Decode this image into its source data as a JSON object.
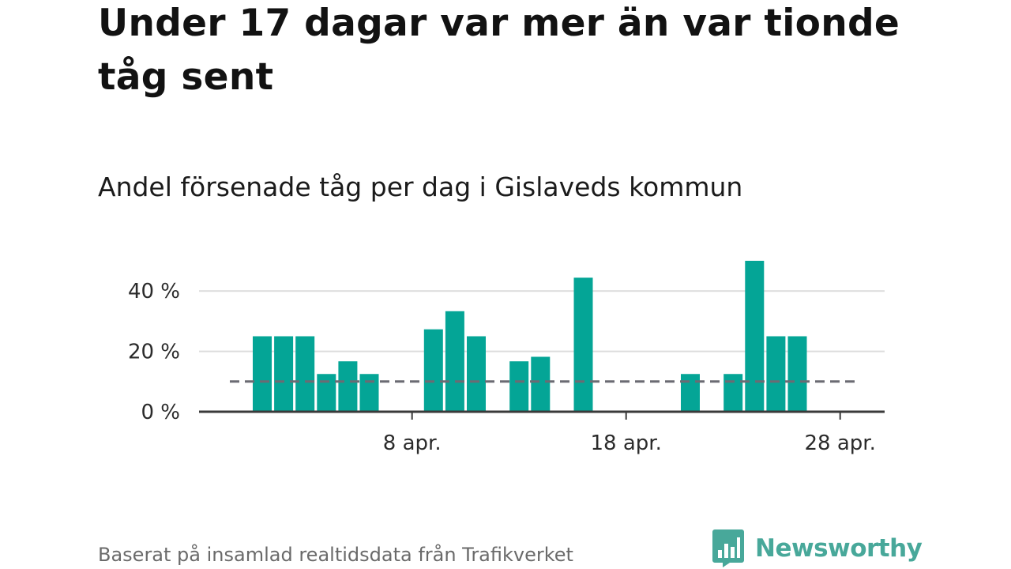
{
  "title": "Under 17 dagar var mer än var tionde tåg sent",
  "subtitle": "Andel försenade tåg per dag i Gislaveds kommun",
  "source": "Baserat på insamlad realtidsdata från Trafikverket",
  "brand": {
    "name": "Newsworthy",
    "icon": "newsworthy-logo-icon",
    "color": "#48a89a"
  },
  "chart_data": {
    "type": "bar",
    "x_unit": "day",
    "x": [
      "1 apr.",
      "2 apr.",
      "3 apr.",
      "4 apr.",
      "5 apr.",
      "6 apr.",
      "7 apr.",
      "8 apr.",
      "9 apr.",
      "10 apr.",
      "11 apr.",
      "12 apr.",
      "13 apr.",
      "14 apr.",
      "15 apr.",
      "16 apr.",
      "17 apr.",
      "18 apr.",
      "19 apr.",
      "20 apr.",
      "21 apr.",
      "22 apr.",
      "23 apr.",
      "24 apr.",
      "25 apr.",
      "26 apr.",
      "27 apr.",
      "28 apr.",
      "29 apr.",
      "30 apr."
    ],
    "values": [
      25,
      25,
      25,
      12.5,
      16.7,
      12.5,
      0,
      0,
      27.3,
      33.3,
      25,
      0,
      16.7,
      18.2,
      0,
      44.4,
      0,
      0,
      0,
      0,
      12.5,
      0,
      12.5,
      50,
      25,
      25,
      0,
      0,
      0,
      0
    ],
    "ylim": [
      0,
      50
    ],
    "yticks": [
      0,
      20,
      40
    ],
    "ytick_labels": [
      "0 %",
      "20 %",
      "40 %"
    ],
    "xticks": [
      "8 apr.",
      "18 apr.",
      "28 apr."
    ],
    "threshold": 10,
    "bar_color": "#04a596",
    "threshold_color": "#6b6b73",
    "grid": true,
    "xlabel": "",
    "ylabel": ""
  }
}
